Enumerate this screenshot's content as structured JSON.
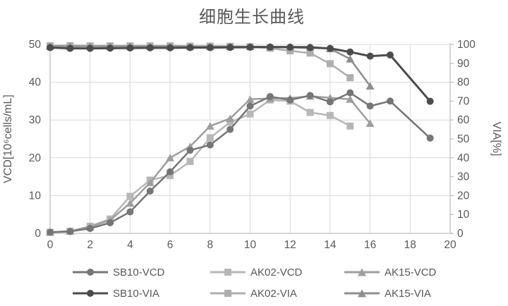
{
  "title": "细胞生长曲线",
  "axes": {
    "x": {
      "min": 0,
      "max": 20,
      "ticks": [
        0,
        2,
        4,
        6,
        8,
        10,
        12,
        14,
        16,
        18,
        20
      ]
    },
    "y_left": {
      "label": "VCD[10⁶cells/mL]",
      "min": 0,
      "max": 50,
      "ticks": [
        0,
        10,
        20,
        30,
        40,
        50
      ]
    },
    "y_right": {
      "label": "VIA[%]",
      "min": 0,
      "max": 100,
      "ticks": [
        0,
        10,
        20,
        30,
        40,
        50,
        60,
        70,
        80,
        90,
        100
      ]
    }
  },
  "colors": {
    "grid": "#d9d9d9",
    "axis": "#bfbfbf",
    "text": "#595959"
  },
  "chart_data": {
    "type": "line",
    "title": "细胞生长曲线",
    "xlabel": "",
    "ylabel_left": "VCD[10⁶cells/mL]",
    "ylabel_right": "VIA[%]",
    "xlim": [
      0,
      20
    ],
    "ylim_left": [
      0,
      50
    ],
    "ylim_right": [
      0,
      100
    ],
    "grid": true,
    "legend_position": "bottom",
    "series": [
      {
        "name": "SB10-VCD",
        "axis": "left",
        "marker": "circle",
        "color": "#767676",
        "line_width": 2.5,
        "x": [
          0,
          1,
          2,
          3,
          4,
          5,
          6,
          7,
          8,
          9,
          10,
          11,
          12,
          13,
          14,
          15,
          16,
          17,
          19
        ],
        "values": [
          0.3,
          0.5,
          1.3,
          2.8,
          5.7,
          11.2,
          16.3,
          22,
          23.4,
          27.5,
          33.7,
          36.2,
          35.3,
          36.5,
          34.8,
          37.2,
          33.7,
          35,
          25.2
        ]
      },
      {
        "name": "AK02-VCD",
        "axis": "left",
        "marker": "square",
        "color": "#b7b7b7",
        "line_width": 2.5,
        "x": [
          0,
          1,
          2,
          3,
          4,
          5,
          6,
          7,
          8,
          9,
          10,
          11,
          12,
          13,
          14,
          15
        ],
        "values": [
          0.3,
          0.6,
          1.9,
          3.8,
          9.8,
          14.1,
          15.3,
          19,
          25.3,
          29.4,
          31.6,
          35.3,
          35,
          32,
          31.2,
          28.4
        ]
      },
      {
        "name": "AK15-VCD",
        "axis": "left",
        "marker": "triangle",
        "color": "#9e9e9e",
        "line_width": 2.5,
        "x": [
          0,
          1,
          2,
          3,
          4,
          5,
          6,
          7,
          8,
          9,
          10,
          11,
          12,
          13,
          14,
          15,
          16
        ],
        "values": [
          0.3,
          0.6,
          1.7,
          3.5,
          8,
          13.4,
          20,
          23,
          28.4,
          30.4,
          35.5,
          35.7,
          35.8,
          36.3,
          35.9,
          35.5,
          29.1
        ]
      },
      {
        "name": "SB10-VIA",
        "axis": "right",
        "marker": "circle",
        "color": "#4c4c4c",
        "line_width": 3,
        "x": [
          0,
          1,
          2,
          3,
          4,
          5,
          6,
          7,
          8,
          9,
          10,
          11,
          12,
          13,
          14,
          15,
          16,
          17,
          19
        ],
        "values": [
          98.3,
          97.9,
          97.9,
          98,
          98.1,
          98.2,
          98.2,
          98.3,
          98.3,
          98.4,
          98.5,
          98.6,
          98.5,
          98.3,
          97.9,
          96,
          93.8,
          94.4,
          69.9
        ]
      },
      {
        "name": "AK02-VIA",
        "axis": "right",
        "marker": "square",
        "color": "#aeaeae",
        "line_width": 2.5,
        "x": [
          0,
          1,
          2,
          3,
          4,
          5,
          6,
          7,
          8,
          9,
          10,
          11,
          12,
          13,
          14,
          15
        ],
        "values": [
          99.3,
          99.3,
          99.2,
          99.2,
          99.2,
          99.2,
          99.2,
          99.1,
          99.1,
          99,
          98.8,
          98,
          96.6,
          95.4,
          89.8,
          82.4
        ]
      },
      {
        "name": "AK15-VIA",
        "axis": "right",
        "marker": "triangle",
        "color": "#8f8f8f",
        "line_width": 2.5,
        "x": [
          0,
          1,
          2,
          3,
          4,
          5,
          6,
          7,
          8,
          9,
          10,
          11,
          12,
          13,
          14,
          15,
          16
        ],
        "values": [
          99,
          99,
          99,
          99,
          99,
          99,
          99,
          98.9,
          98.9,
          98.9,
          98.9,
          98.8,
          98.8,
          98.8,
          97.7,
          92.3,
          78
        ]
      }
    ]
  }
}
